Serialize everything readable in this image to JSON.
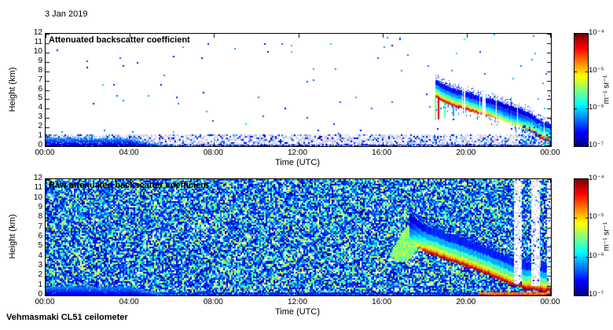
{
  "page": {
    "date_label": "3 Jan 2019",
    "instrument_label": "Vehmasmaki CL51 ceilometer"
  },
  "chart_data": [
    {
      "type": "heatmap",
      "title": "Attenuated backscatter coefficient",
      "xlabel": "Time (UTC)",
      "ylabel": "Height (km)",
      "x_range_hours": [
        0,
        24
      ],
      "x_tick_hours": [
        0,
        4,
        8,
        12,
        16,
        20,
        24
      ],
      "x_tick_labels": [
        "00:00",
        "04:00",
        "08:00",
        "12:00",
        "16:00",
        "20:00",
        "00:00"
      ],
      "y_range_km": [
        0,
        12
      ],
      "y_tick_km": [
        0,
        1,
        2,
        3,
        4,
        5,
        6,
        7,
        8,
        9,
        10,
        11,
        12
      ],
      "colorbar": {
        "scale": "log",
        "range_min": "1e-7",
        "range_max": "1e-4",
        "tick_labels": [
          "10⁻⁴",
          "10⁻⁵",
          "10⁻⁶",
          "10⁻⁷"
        ],
        "units": "m⁻¹ sr⁻¹",
        "colormap": "jet"
      },
      "features": {
        "surface_noise": {
          "h_top": 1.25,
          "gray_frac": 0.5,
          "blue_frac": 0.16
        },
        "surface_line": {
          "h_top": 0.12,
          "density": 0.7
        },
        "sparse_specks": {
          "density": 0.0045
        },
        "aerosol_blob": {
          "t0": 0,
          "t1": 5.6,
          "h_peak": 0.85
        },
        "band": {
          "points": [
            [
              18.55,
              5.15,
              1
            ],
            [
              19.0,
              4.6,
              1
            ],
            [
              19.5,
              4.15,
              1
            ],
            [
              20.0,
              3.8,
              1
            ],
            [
              20.5,
              3.5,
              0.95
            ],
            [
              21.0,
              3.2,
              0.85
            ],
            [
              21.5,
              2.85,
              0.7
            ],
            [
              22.0,
              2.5,
              0.6
            ],
            [
              22.5,
              2.1,
              0.65
            ],
            [
              23.0,
              1.6,
              0.85
            ],
            [
              23.4,
              0.95,
              1
            ],
            [
              23.7,
              0.6,
              1
            ],
            [
              24,
              0.5,
              1
            ]
          ],
          "layers": [
            [
              0,
              0.15,
              0.95
            ],
            [
              0.15,
              0.28,
              0.84
            ],
            [
              0.28,
              0.42,
              0.68
            ],
            [
              0.42,
              0.65,
              0.55
            ],
            [
              0.65,
              0.95,
              0.42
            ],
            [
              0.95,
              1.35,
              0.28
            ],
            [
              1.35,
              1.9,
              0.14
            ]
          ],
          "halo": 0.8,
          "virga": true,
          "dropout": 0.04
        },
        "streaks": [
          {
            "t": 18.5,
            "len": 2.4,
            "v": 0.5
          },
          {
            "t": 18.63,
            "len": 2.2,
            "v": 0.9
          },
          {
            "t": 18.95,
            "len": 1.7,
            "v": 0.45
          },
          {
            "t": 19.35,
            "len": 1.1,
            "v": 0.3
          }
        ],
        "white_gaps": [
          {
            "t": 19.9,
            "w": 0.07
          },
          {
            "t": 20.8,
            "w": 0.12
          }
        ],
        "speckle_cloud": {
          "t0": 22.6,
          "t1": 24,
          "h0": 0.1,
          "h1": 2.4,
          "density": 0.3,
          "v0": 0.06,
          "v1": 0.4
        }
      }
    },
    {
      "type": "heatmap",
      "title": "Raw attenuated backscatter coefficient",
      "xlabel": "Time (UTC)",
      "ylabel": "Height (km)",
      "x_range_hours": [
        0,
        24
      ],
      "x_tick_hours": [
        0,
        4,
        8,
        12,
        16,
        20,
        24
      ],
      "x_tick_labels": [
        "00:00",
        "04:00",
        "08:00",
        "12:00",
        "16:00",
        "20:00",
        "00:00"
      ],
      "y_range_km": [
        0,
        12
      ],
      "y_tick_km": [
        0,
        1,
        2,
        3,
        4,
        5,
        6,
        7,
        8,
        9,
        10,
        11,
        12
      ],
      "colorbar": {
        "scale": "log",
        "range_min": "1e-7",
        "range_max": "1e-4",
        "tick_labels": [
          "10⁻⁴",
          "10⁻⁵",
          "10⁻⁶",
          "10⁻⁷"
        ],
        "units": "m⁻¹ sr⁻¹",
        "colormap": "jet"
      },
      "features": {
        "full_noise": {
          "white_frac": 0.08,
          "green_frac": 0.3,
          "yellow_frac": 0.03
        },
        "aerosol_blob": {
          "t0": 0,
          "t1": 5.6,
          "h_peak": 0.9
        },
        "bottom_layer": {
          "h_top": 0.32,
          "density": 0.75
        },
        "plume": {
          "path": [
            [
              16.85,
              4.2
            ],
            [
              17.15,
              5.3
            ],
            [
              17.45,
              6.4
            ],
            [
              17.8,
              6.9
            ],
            [
              18.15,
              6.0
            ],
            [
              18.5,
              5.1
            ]
          ],
          "radius": 0.75
        },
        "band": {
          "points": [
            [
              17.3,
              5.6,
              0.5
            ],
            [
              17.7,
              4.9,
              0.75
            ],
            [
              18.1,
              4.35,
              1
            ],
            [
              18.6,
              4.0,
              1
            ],
            [
              19.2,
              3.5,
              1
            ],
            [
              19.8,
              3.05,
              1
            ],
            [
              20.4,
              2.6,
              1
            ],
            [
              21.0,
              2.1,
              1
            ],
            [
              21.6,
              1.55,
              1
            ],
            [
              22.2,
              1.0,
              1
            ],
            [
              22.8,
              0.65,
              1
            ],
            [
              23.4,
              0.45,
              1
            ],
            [
              24,
              0.4,
              1
            ]
          ],
          "layers": [
            [
              0,
              0.18,
              0.95
            ],
            [
              0.18,
              0.35,
              0.85
            ],
            [
              0.35,
              0.55,
              0.7
            ],
            [
              0.55,
              0.9,
              0.58
            ],
            [
              0.9,
              1.4,
              0.45
            ],
            [
              1.4,
              2.0,
              0.3
            ],
            [
              2.0,
              2.8,
              0.16
            ]
          ],
          "halo": 1.0,
          "virga": false,
          "dropout": 0
        },
        "stripes": [
          {
            "t0": 22.25,
            "t1": 22.6,
            "h0": 1.2
          },
          {
            "t0": 23.1,
            "t1": 23.45,
            "h0": 0.9
          },
          {
            "t0": 23.85,
            "t1": 24,
            "h0": 1.1
          }
        ],
        "surface_red": {
          "t0": 20.6,
          "t1": 24,
          "h_top": 0.3
        }
      }
    }
  ]
}
